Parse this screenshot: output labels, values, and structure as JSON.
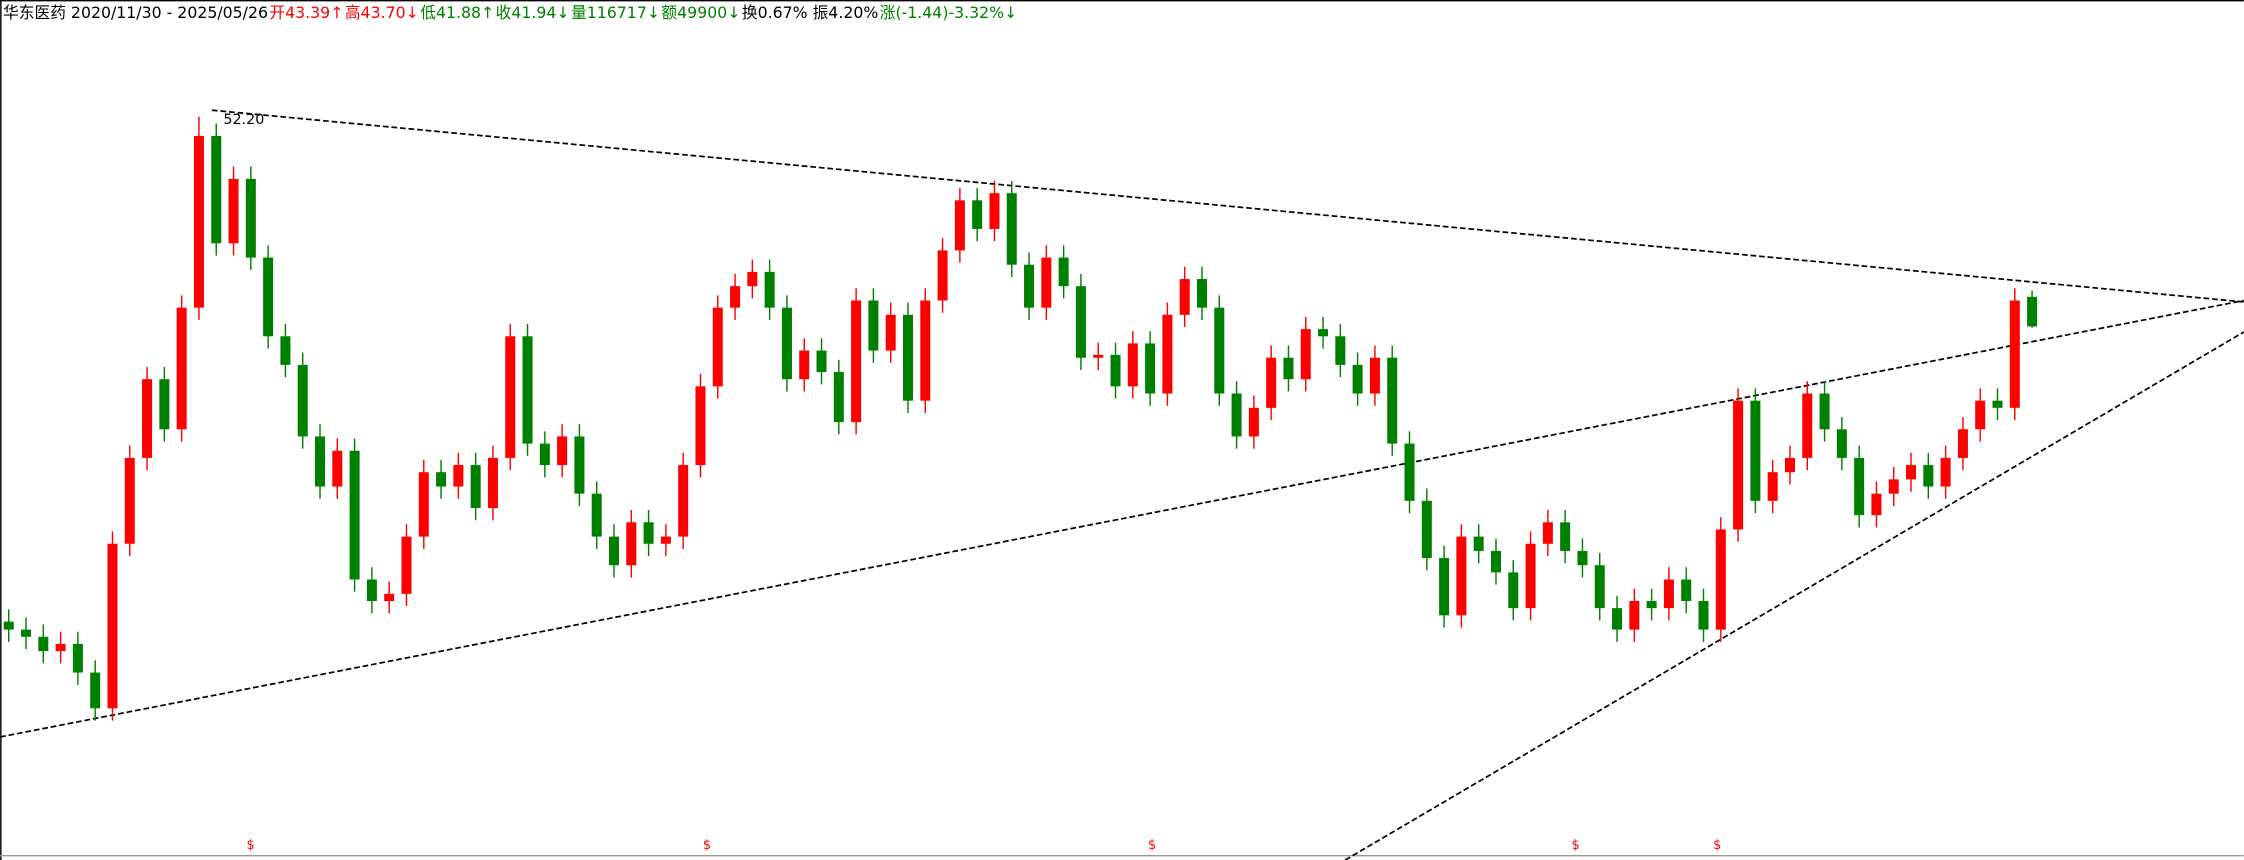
{
  "chart_data": {
    "type": "candlestick",
    "header": [
      {
        "text": "华东医药 2020/11/30 - 2025/05/26",
        "color": "#000000"
      },
      {
        "text": "开43.39↑",
        "color": "#ff0000"
      },
      {
        "text": "高43.70↓",
        "color": "#ff0000"
      },
      {
        "text": "低41.88↑",
        "color": "#008000"
      },
      {
        "text": "收41.94↓",
        "color": "#008000"
      },
      {
        "text": "量116717↓",
        "color": "#008000"
      },
      {
        "text": "额49900↓",
        "color": "#008000"
      },
      {
        "text": "换0.67% 振4.20%",
        "color": "#000000"
      },
      {
        "text": "涨(-1.44)-3.32%↓",
        "color": "#008000"
      }
    ],
    "peak_label": "52.20",
    "markers": [
      "$",
      "$",
      "$",
      "$",
      "$"
    ],
    "up_color": "#ff0000",
    "down_color": "#008000",
    "ylim": [
      15.84,
      57.91
    ],
    "open": [
      27.5,
      27.11,
      26.76,
      26.06,
      26.41,
      25.01,
      23.26,
      31.31,
      35.51,
      39.36,
      36.91,
      42.86,
      51.26,
      46.01,
      49.16,
      45.31,
      41.46,
      40.06,
      36.56,
      34.11,
      35.86,
      29.56,
      28.51,
      28.86,
      31.66,
      34.81,
      34.11,
      35.16,
      33.06,
      35.51,
      41.46,
      36.21,
      35.16,
      36.56,
      33.76,
      31.66,
      30.26,
      32.36,
      31.31,
      31.66,
      35.16,
      39.01,
      42.86,
      43.91,
      44.61,
      42.86,
      39.36,
      40.76,
      39.71,
      37.26,
      43.21,
      40.76,
      42.51,
      38.31,
      43.21,
      45.66,
      48.11,
      46.71,
      48.46,
      44.96,
      42.86,
      45.31,
      43.91,
      40.41,
      40.55,
      39.01,
      41.11,
      38.66,
      42.51,
      44.26,
      42.86,
      38.66,
      36.56,
      37.96,
      40.41,
      39.36,
      41.81,
      41.46,
      40.06,
      38.66,
      40.41,
      36.21,
      33.41,
      30.61,
      27.81,
      31.66,
      30.96,
      29.91,
      28.16,
      31.31,
      32.36,
      30.96,
      30.26,
      28.16,
      27.11,
      28.51,
      28.16,
      29.56,
      28.51,
      27.11,
      32.01,
      38.31,
      33.41,
      34.81,
      35.51,
      38.66,
      36.91,
      35.51,
      32.71,
      33.76,
      34.46,
      35.16,
      34.11,
      35.51,
      36.91,
      38.31,
      37.96,
      43.39
    ],
    "high": [
      28.1,
      27.71,
      27.36,
      27.01,
      27.01,
      25.61,
      31.91,
      36.11,
      39.96,
      39.96,
      43.46,
      52.2,
      51.86,
      49.76,
      49.76,
      45.91,
      42.06,
      40.66,
      37.16,
      36.46,
      36.46,
      30.16,
      29.46,
      32.26,
      35.41,
      35.41,
      35.76,
      35.76,
      36.11,
      42.06,
      42.06,
      36.81,
      37.16,
      37.16,
      34.36,
      32.26,
      32.96,
      32.96,
      32.26,
      35.76,
      39.61,
      43.46,
      44.51,
      45.21,
      45.21,
      43.46,
      41.36,
      41.36,
      40.31,
      43.81,
      43.81,
      43.11,
      43.11,
      43.81,
      46.26,
      48.71,
      48.71,
      49.06,
      49.06,
      45.56,
      45.91,
      45.91,
      44.51,
      41.15,
      41.15,
      41.71,
      41.71,
      43.11,
      44.86,
      44.86,
      43.46,
      39.26,
      38.56,
      41.01,
      41.01,
      42.41,
      42.41,
      42.06,
      40.66,
      41.01,
      41.01,
      36.81,
      34.01,
      31.21,
      32.26,
      32.26,
      31.56,
      30.51,
      31.91,
      32.96,
      32.96,
      31.56,
      30.86,
      28.76,
      29.11,
      29.11,
      30.16,
      30.16,
      29.11,
      32.61,
      38.91,
      38.91,
      35.41,
      36.11,
      39.26,
      39.26,
      37.51,
      36.11,
      34.36,
      35.06,
      35.76,
      35.76,
      36.11,
      37.51,
      38.91,
      38.91,
      43.81,
      43.7
    ],
    "low": [
      26.51,
      26.16,
      25.46,
      25.46,
      24.41,
      22.66,
      22.66,
      30.71,
      34.91,
      36.31,
      36.31,
      42.26,
      45.41,
      45.41,
      44.71,
      40.86,
      39.46,
      35.96,
      33.51,
      33.51,
      28.96,
      27.91,
      27.91,
      28.26,
      31.06,
      33.51,
      33.51,
      32.46,
      32.46,
      34.91,
      35.61,
      34.56,
      34.56,
      33.16,
      31.06,
      29.66,
      29.66,
      30.71,
      30.71,
      31.06,
      34.56,
      38.41,
      42.26,
      43.31,
      42.26,
      38.76,
      38.76,
      39.11,
      36.66,
      36.66,
      40.16,
      40.16,
      37.71,
      37.71,
      42.61,
      45.06,
      46.11,
      46.11,
      44.36,
      42.26,
      42.26,
      43.31,
      39.81,
      39.81,
      38.41,
      38.41,
      38.06,
      38.06,
      41.91,
      42.26,
      38.06,
      35.96,
      35.96,
      37.36,
      38.76,
      38.76,
      40.86,
      39.46,
      38.06,
      38.06,
      35.61,
      32.81,
      30.01,
      27.21,
      27.21,
      30.36,
      29.31,
      27.56,
      27.56,
      30.71,
      30.36,
      29.66,
      27.56,
      26.51,
      26.51,
      27.56,
      27.56,
      27.91,
      26.51,
      26.51,
      31.41,
      32.81,
      32.81,
      34.21,
      34.91,
      36.31,
      34.91,
      32.11,
      32.11,
      33.16,
      33.86,
      33.51,
      33.51,
      34.91,
      36.31,
      37.36,
      37.36,
      41.88
    ],
    "close": [
      27.11,
      26.76,
      26.06,
      26.41,
      25.01,
      23.26,
      31.31,
      35.51,
      39.36,
      36.91,
      42.86,
      51.26,
      46.01,
      49.16,
      45.31,
      41.46,
      40.06,
      36.56,
      34.11,
      35.86,
      29.56,
      28.51,
      28.86,
      31.66,
      34.81,
      34.11,
      35.16,
      33.06,
      35.51,
      41.46,
      36.21,
      35.16,
      36.56,
      33.76,
      31.66,
      30.26,
      32.36,
      31.31,
      31.66,
      35.16,
      39.01,
      42.86,
      43.91,
      44.61,
      42.86,
      39.36,
      40.76,
      39.71,
      37.26,
      43.21,
      40.76,
      42.51,
      38.31,
      43.21,
      45.66,
      48.11,
      46.71,
      48.46,
      44.96,
      42.86,
      45.31,
      43.91,
      40.41,
      40.55,
      39.01,
      41.11,
      38.66,
      42.51,
      44.26,
      42.86,
      38.66,
      36.56,
      37.96,
      40.41,
      39.36,
      41.81,
      41.46,
      40.06,
      38.66,
      40.41,
      36.21,
      33.41,
      30.61,
      27.81,
      31.66,
      30.96,
      29.91,
      28.16,
      31.31,
      32.36,
      30.96,
      30.26,
      28.16,
      27.11,
      28.51,
      28.16,
      29.56,
      28.51,
      27.11,
      32.01,
      38.31,
      33.41,
      34.81,
      35.51,
      38.66,
      36.91,
      35.51,
      32.71,
      33.76,
      34.46,
      35.16,
      34.11,
      35.51,
      36.91,
      38.31,
      37.96,
      43.21,
      41.94
    ]
  }
}
